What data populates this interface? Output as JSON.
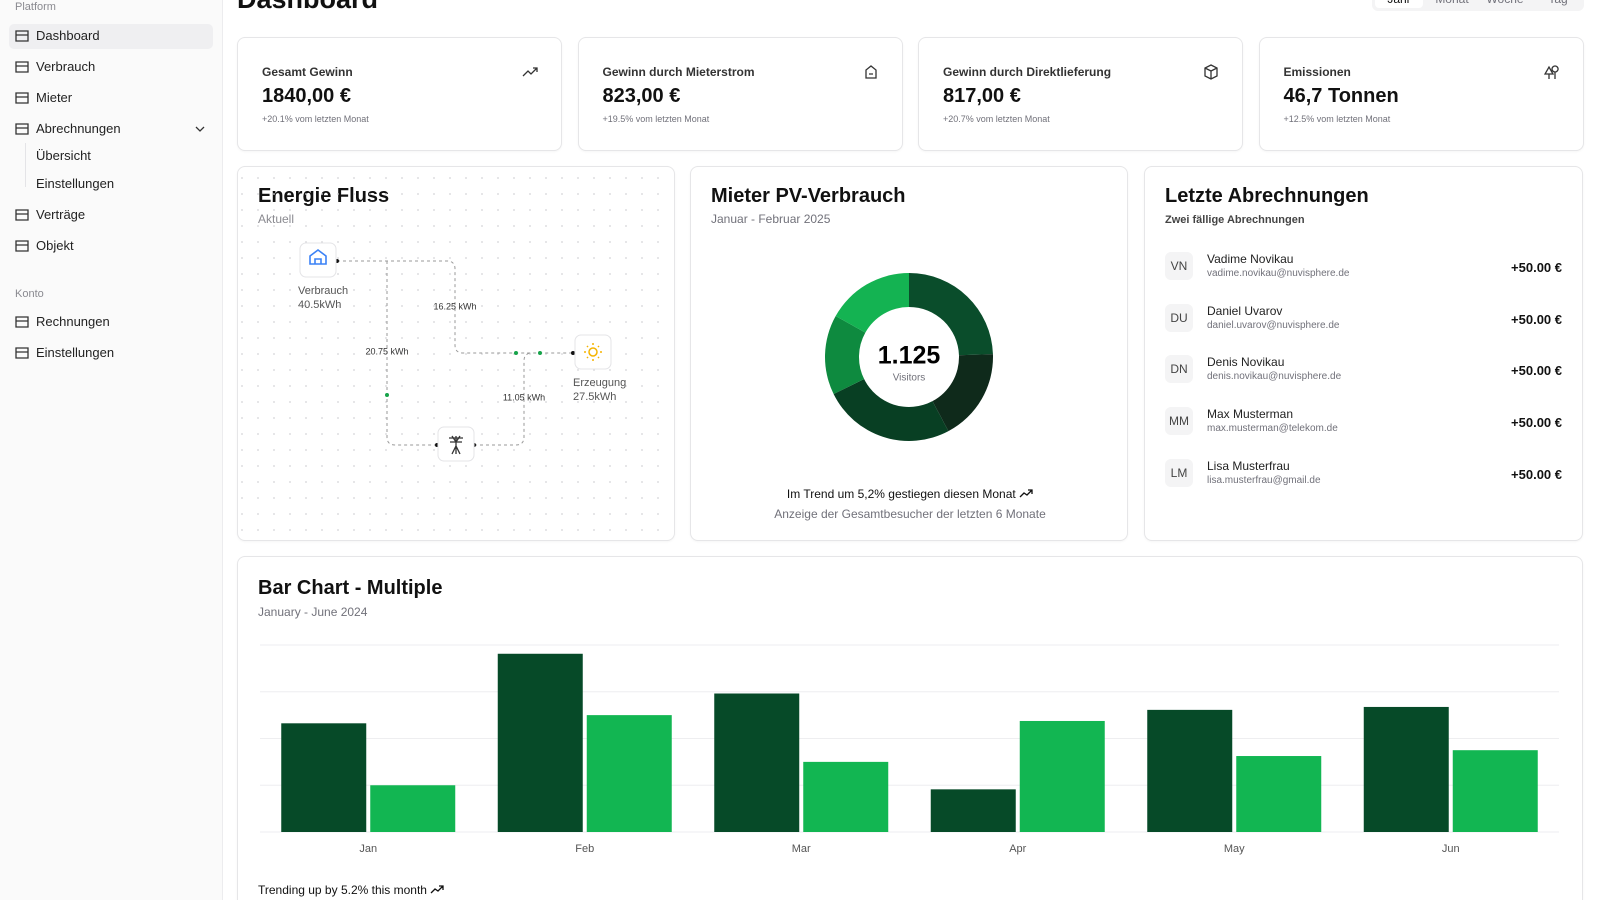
{
  "header": {
    "title": "Dashboard",
    "tabs": [
      "Jahr",
      "Monat",
      "Woche",
      "Tag"
    ]
  },
  "sidebar": {
    "platform_label": "Platform",
    "items": [
      {
        "label": "Dashboard"
      },
      {
        "label": "Verbrauch"
      },
      {
        "label": "Mieter"
      },
      {
        "label": "Abrechnungen",
        "children": [
          "Übersicht",
          "Einstellungen"
        ]
      },
      {
        "label": "Verträge"
      },
      {
        "label": "Objekt"
      }
    ],
    "konto_label": "Konto",
    "konto_items": [
      "Rechnungen",
      "Einstellungen"
    ]
  },
  "kpis": [
    {
      "title": "Gesamt Gewinn",
      "value": "1840,00 €",
      "change": "+20.1% vom letzten Monat"
    },
    {
      "title": "Gewinn durch Mieterstrom",
      "value": "823,00 €",
      "change": "+19.5% vom letzten Monat"
    },
    {
      "title": "Gewinn durch Direktlieferung",
      "value": "817,00 €",
      "change": "+20.7% vom letzten Monat"
    },
    {
      "title": "Emissionen",
      "value": "46,7 Tonnen",
      "change": "+12.5% vom letzten Monat"
    }
  ],
  "energy_flow": {
    "title": "Energie Fluss",
    "subtitle": "Aktuell",
    "consumption_label": "Verbrauch",
    "consumption_value": "40.5kWh",
    "generation_label": "Erzeugung",
    "generation_value": "27.5kWh",
    "flows": [
      "16.25 kWh",
      "20.75 kWh",
      "11.05 kWh"
    ]
  },
  "chart_data": [
    {
      "type": "pie",
      "title": "Mieter PV-Verbrauch",
      "subtitle": "Januar - Februar 2025",
      "values": [
        275,
        200,
        287,
        173,
        190
      ],
      "colors": [
        "#0a4d2b",
        "#0f2a1b",
        "#083f23",
        "#0e8a3f",
        "#14b352"
      ],
      "center_value": "1.125",
      "center_label": "Visitors",
      "footer": "Im Trend um 5,2% gestiegen diesen Monat",
      "footer_note": "Anzeige der Gesamtbesucher der letzten 6 Monate"
    },
    {
      "type": "bar",
      "title": "Bar Chart - Multiple",
      "subtitle": "January - June 2024",
      "categories": [
        "Jan",
        "Feb",
        "Mar",
        "Apr",
        "May",
        "Jun"
      ],
      "series": [
        {
          "color": "#064a28",
          "values": [
            186,
            305,
            237,
            73,
            209,
            214
          ]
        },
        {
          "color": "#12b652",
          "values": [
            80,
            200,
            120,
            190,
            130,
            140
          ]
        }
      ],
      "ylim": [
        0,
        320
      ],
      "yticks": [
        0,
        80,
        160,
        240,
        320
      ],
      "grid": true,
      "footer": "Trending up by 5.2% this month"
    }
  ],
  "billing": {
    "title": "Letzte Abrechnungen",
    "subtitle": "Zwei fällige Abrechnungen",
    "rows": [
      {
        "initials": "VN",
        "name": "Vadime Novikau",
        "email": "vadime.novikau@nuvisphere.de",
        "amount": "+50.00 €"
      },
      {
        "initials": "DU",
        "name": "Daniel Uvarov",
        "email": "daniel.uvarov@nuvisphere.de",
        "amount": "+50.00 €"
      },
      {
        "initials": "DN",
        "name": "Denis Novikau",
        "email": "denis.novikau@nuvisphere.de",
        "amount": "+50.00 €"
      },
      {
        "initials": "MM",
        "name": "Max Musterman",
        "email": "max.musterman@telekom.de",
        "amount": "+50.00 €"
      },
      {
        "initials": "LM",
        "name": "Lisa Musterfrau",
        "email": "lisa.musterfrau@gmail.de",
        "amount": "+50.00 €"
      }
    ]
  }
}
